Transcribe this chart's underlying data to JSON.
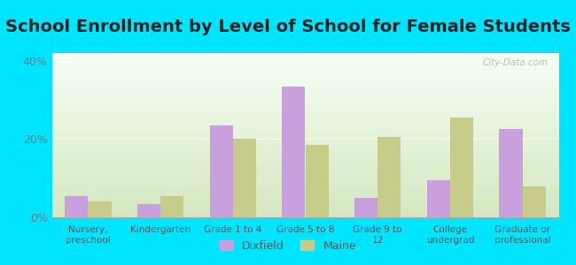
{
  "title": "School Enrollment by Level of School for Female Students",
  "categories": [
    "Nursery,\npreschool",
    "Kindergarten",
    "Grade 1 to 4",
    "Grade 5 to 8",
    "Grade 9 to\n12",
    "College\nundergrad",
    "Graduate or\nprofessional"
  ],
  "dixfield": [
    5.5,
    3.5,
    23.5,
    33.5,
    5.0,
    9.5,
    22.5
  ],
  "maine": [
    4.0,
    5.5,
    20.0,
    18.5,
    20.5,
    25.5,
    8.0
  ],
  "dixfield_color": "#c9a0dc",
  "maine_color": "#c8cc8a",
  "background_outer": "#00e5ff",
  "ylim": [
    0,
    42
  ],
  "yticks": [
    0,
    20,
    40
  ],
  "ytick_labels": [
    "0%",
    "20%",
    "40%"
  ],
  "title_fontsize": 14,
  "legend_labels": [
    "Dixfield",
    "Maine"
  ],
  "watermark": "City-Data.com"
}
